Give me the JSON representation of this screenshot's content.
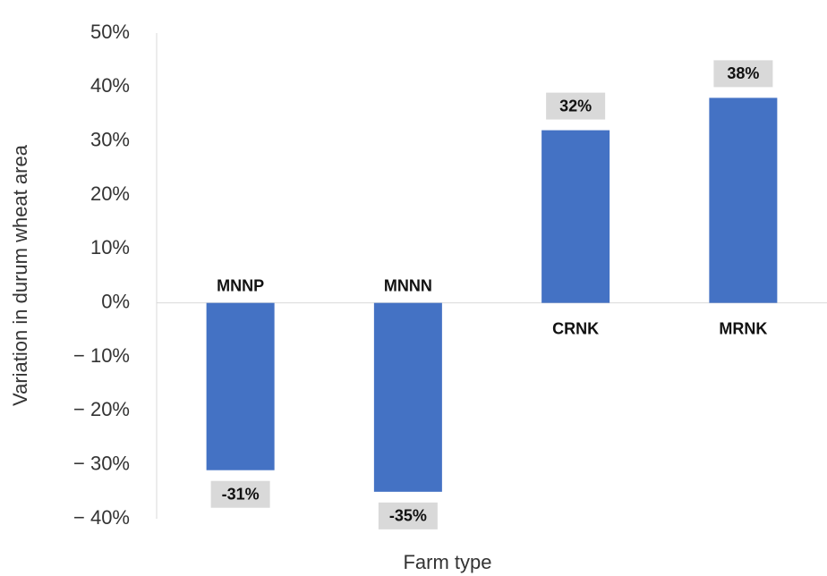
{
  "chart_data": {
    "type": "bar",
    "x_label": "Farm type",
    "y_label": "Variation in durum wheat area",
    "categories": [
      "MNNP",
      "MNNN",
      "CRNK",
      "MRNK"
    ],
    "values": [
      -31,
      -35,
      32,
      38
    ],
    "value_labels": [
      "-31%",
      "-35%",
      "32%",
      "38%"
    ],
    "color": "#4472c4",
    "ylim": [
      -40,
      50
    ],
    "yticks": [
      {
        "value": -40,
        "label": "− 40%"
      },
      {
        "value": -30,
        "label": "− 30%"
      },
      {
        "value": -20,
        "label": "− 20%"
      },
      {
        "value": -10,
        "label": "− 10%"
      },
      {
        "value": 0,
        "label": "0%"
      },
      {
        "value": 10,
        "label": "10%"
      },
      {
        "value": 20,
        "label": "20%"
      },
      {
        "value": 30,
        "label": "30%"
      },
      {
        "value": 40,
        "label": "40%"
      },
      {
        "value": 50,
        "label": "50%"
      }
    ],
    "grid": false
  }
}
